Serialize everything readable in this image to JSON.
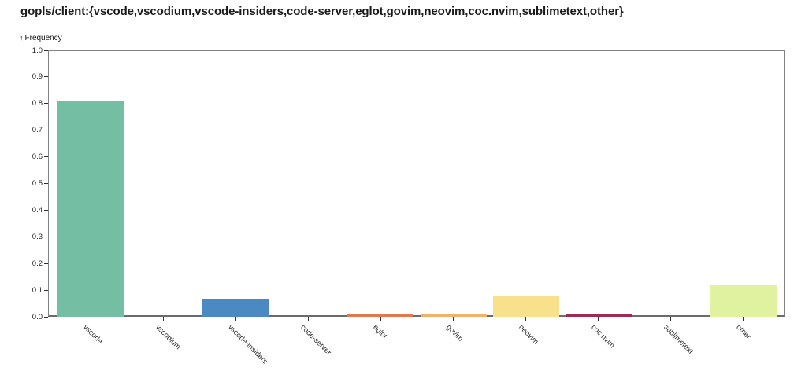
{
  "chart_data": {
    "type": "bar",
    "title": "gopls/client:{vscode,vscodium,vscode-insiders,code-server,eglot,govim,neovim,coc.nvim,sublimetext,other}",
    "xlabel": "",
    "ylabel": "Frequency",
    "ylabel_arrow": "↑",
    "ylim": [
      0,
      1.0
    ],
    "y_tick_step": 0.1,
    "grid": false,
    "legend": false,
    "categories": [
      "vscode",
      "vscodium",
      "vscode-insiders",
      "code-server",
      "eglot",
      "govim",
      "neovim",
      "coc.nvim",
      "sublimetext",
      "other"
    ],
    "values": [
      0.81,
      0,
      0.068,
      0,
      0.012,
      0.011,
      0.077,
      0.012,
      0,
      0.121
    ],
    "colors": [
      "#74bfa3",
      null,
      "#4a89c1",
      null,
      "#e0794e",
      "#f0b26a",
      "#f8e08d",
      "#a02a52",
      null,
      "#e0f2a0"
    ],
    "axis_color": "#828282",
    "background": "#ffffff"
  }
}
